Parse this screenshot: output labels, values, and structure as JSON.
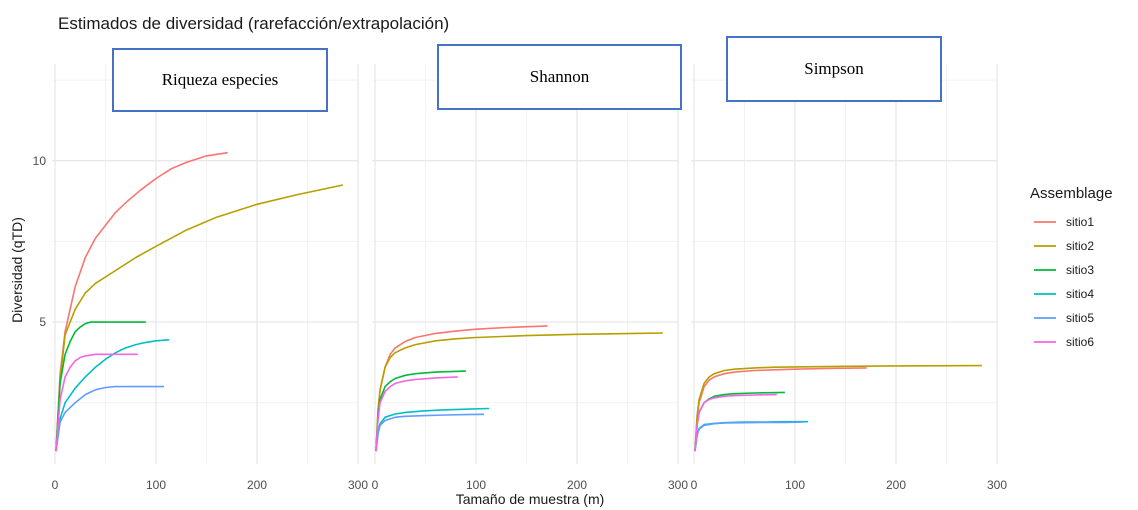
{
  "chart_data": {
    "type": "line",
    "title": "Estimados de diversidad (rarefacción/extrapolación)",
    "xlabel": "Tamaño de muestra (m)",
    "ylabel": "Diversidad (qTD)",
    "ylim": [
      0.6,
      13.0
    ],
    "xlim": [
      -3,
      300
    ],
    "y_ticks": [
      5,
      10
    ],
    "x_ticks": [
      0,
      100,
      200,
      300
    ],
    "grid": true,
    "legend": {
      "title": "Assemblage",
      "position": "right"
    },
    "colors": {
      "sitio1": "#f8766d",
      "sitio2": "#b79f00",
      "sitio3": "#00ba38",
      "sitio4": "#00bfc4",
      "sitio5": "#619cff",
      "sitio6": "#f564e3"
    },
    "panels": [
      {
        "label": "Riqueza especies",
        "series": [
          {
            "name": "sitio1",
            "x": [
              1,
              5,
              10,
              20,
              30,
              40,
              50,
              60,
              70,
              85,
              100,
              115,
              130,
              150,
              171
            ],
            "values": [
              1.0,
              3.4,
              4.7,
              6.1,
              7.0,
              7.6,
              8.0,
              8.4,
              8.7,
              9.1,
              9.45,
              9.75,
              9.95,
              10.15,
              10.25
            ]
          },
          {
            "name": "sitio2",
            "x": [
              1,
              5,
              10,
              20,
              30,
              40,
              60,
              80,
              100,
              130,
              160,
              200,
              240,
              285
            ],
            "values": [
              1.0,
              3.2,
              4.6,
              5.4,
              5.9,
              6.2,
              6.6,
              7.0,
              7.35,
              7.85,
              8.25,
              8.65,
              8.95,
              9.25
            ]
          },
          {
            "name": "sitio3",
            "x": [
              1,
              5,
              10,
              15,
              20,
              25,
              30,
              35,
              45,
              60,
              90
            ],
            "values": [
              1.0,
              3.1,
              4.0,
              4.4,
              4.7,
              4.85,
              4.95,
              5.0,
              5.0,
              5.0,
              5.0
            ]
          },
          {
            "name": "sitio4",
            "x": [
              1,
              5,
              10,
              20,
              30,
              40,
              50,
              60,
              70,
              80,
              90,
              100,
              113
            ],
            "values": [
              1.0,
              2.0,
              2.5,
              2.95,
              3.3,
              3.6,
              3.85,
              4.05,
              4.2,
              4.3,
              4.37,
              4.42,
              4.45
            ]
          },
          {
            "name": "sitio5",
            "x": [
              1,
              5,
              10,
              20,
              30,
              40,
              50,
              60,
              80,
              108
            ],
            "values": [
              1.0,
              1.9,
              2.2,
              2.5,
              2.75,
              2.9,
              2.97,
              3.0,
              3.0,
              3.0
            ]
          },
          {
            "name": "sitio6",
            "x": [
              1,
              5,
              10,
              15,
              20,
              25,
              30,
              40,
              60,
              82
            ],
            "values": [
              1.0,
              2.6,
              3.3,
              3.6,
              3.8,
              3.9,
              3.95,
              4.0,
              4.0,
              4.0
            ]
          }
        ]
      },
      {
        "label": "Shannon",
        "series": [
          {
            "name": "sitio1",
            "x": [
              1,
              3,
              5,
              10,
              15,
              20,
              30,
              40,
              60,
              80,
              100,
              130,
              171
            ],
            "values": [
              1.0,
              2.3,
              2.9,
              3.6,
              4.0,
              4.2,
              4.4,
              4.52,
              4.65,
              4.72,
              4.78,
              4.83,
              4.88
            ]
          },
          {
            "name": "sitio2",
            "x": [
              1,
              3,
              5,
              10,
              15,
              20,
              30,
              40,
              60,
              80,
              100,
              150,
              200,
              285
            ],
            "values": [
              1.0,
              2.3,
              2.9,
              3.6,
              3.9,
              4.05,
              4.2,
              4.3,
              4.42,
              4.48,
              4.52,
              4.58,
              4.62,
              4.66
            ]
          },
          {
            "name": "sitio3",
            "x": [
              1,
              3,
              5,
              10,
              15,
              20,
              30,
              40,
              60,
              90
            ],
            "values": [
              1.0,
              2.1,
              2.6,
              3.0,
              3.15,
              3.25,
              3.35,
              3.4,
              3.45,
              3.48
            ]
          },
          {
            "name": "sitio4",
            "x": [
              1,
              3,
              5,
              10,
              20,
              30,
              50,
              70,
              90,
              113
            ],
            "values": [
              1.0,
              1.6,
              1.85,
              2.05,
              2.15,
              2.2,
              2.25,
              2.28,
              2.3,
              2.32
            ]
          },
          {
            "name": "sitio5",
            "x": [
              1,
              3,
              5,
              10,
              20,
              30,
              50,
              70,
              90,
              108
            ],
            "values": [
              1.0,
              1.55,
              1.8,
              1.95,
              2.05,
              2.08,
              2.1,
              2.12,
              2.13,
              2.14
            ]
          },
          {
            "name": "sitio6",
            "x": [
              1,
              3,
              5,
              10,
              15,
              20,
              30,
              40,
              60,
              82
            ],
            "values": [
              1.0,
              2.0,
              2.5,
              2.85,
              3.0,
              3.1,
              3.18,
              3.22,
              3.27,
              3.3
            ]
          }
        ]
      },
      {
        "label": "Simpson",
        "series": [
          {
            "name": "sitio1",
            "x": [
              1,
              3,
              5,
              10,
              15,
              20,
              30,
              40,
              60,
              80,
              100,
              130,
              171
            ],
            "values": [
              1.0,
              2.0,
              2.5,
              3.0,
              3.2,
              3.3,
              3.4,
              3.45,
              3.5,
              3.52,
              3.54,
              3.56,
              3.58
            ]
          },
          {
            "name": "sitio2",
            "x": [
              1,
              3,
              5,
              10,
              15,
              20,
              30,
              40,
              60,
              80,
              100,
              150,
              200,
              285
            ],
            "values": [
              1.0,
              2.1,
              2.6,
              3.1,
              3.3,
              3.4,
              3.5,
              3.54,
              3.58,
              3.6,
              3.61,
              3.63,
              3.64,
              3.65
            ]
          },
          {
            "name": "sitio3",
            "x": [
              1,
              3,
              5,
              10,
              15,
              20,
              30,
              40,
              60,
              90
            ],
            "values": [
              1.0,
              1.8,
              2.2,
              2.5,
              2.62,
              2.7,
              2.75,
              2.78,
              2.8,
              2.82
            ]
          },
          {
            "name": "sitio4",
            "x": [
              1,
              3,
              5,
              10,
              20,
              30,
              50,
              70,
              90,
              113
            ],
            "values": [
              1.0,
              1.5,
              1.7,
              1.82,
              1.86,
              1.88,
              1.9,
              1.9,
              1.91,
              1.91
            ]
          },
          {
            "name": "sitio5",
            "x": [
              1,
              3,
              5,
              10,
              20,
              30,
              50,
              70,
              90,
              108
            ],
            "values": [
              1.0,
              1.5,
              1.68,
              1.8,
              1.85,
              1.87,
              1.88,
              1.89,
              1.89,
              1.9
            ]
          },
          {
            "name": "sitio6",
            "x": [
              1,
              3,
              5,
              10,
              15,
              20,
              30,
              40,
              60,
              82
            ],
            "values": [
              1.0,
              1.8,
              2.2,
              2.5,
              2.6,
              2.65,
              2.7,
              2.72,
              2.74,
              2.75
            ]
          }
        ]
      }
    ]
  }
}
